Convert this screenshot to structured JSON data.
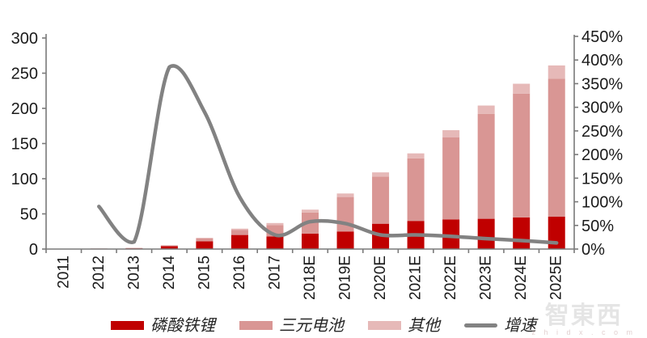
{
  "watermark": {
    "title": "智東西",
    "subtitle": "z h i d x . c o m"
  },
  "legend": {
    "items": [
      {
        "id": "lfp",
        "label": "磷酸铁锂",
        "color": "#C00000",
        "type": "bar"
      },
      {
        "id": "ncm",
        "label": "三元电池",
        "color": "#D99694",
        "type": "bar"
      },
      {
        "id": "other",
        "label": "其他",
        "color": "#E6B9B8",
        "type": "bar"
      },
      {
        "id": "growth",
        "label": "增速",
        "color": "#828282",
        "type": "line"
      }
    ]
  },
  "chart_data": {
    "type": "bar",
    "subtype": "stacked-column-with-growth-line",
    "title": "",
    "xlabel": "",
    "ylabel": "",
    "grid": false,
    "legend_position": "bottom",
    "categories": [
      "2011",
      "2012",
      "2013",
      "2014",
      "2015",
      "2016",
      "2017",
      "2018E",
      "2019E",
      "2020E",
      "2021E",
      "2022E",
      "2023E",
      "2024E",
      "2025E"
    ],
    "series": [
      {
        "id": "lfp",
        "name": "磷酸铁锂",
        "type": "bar",
        "axis": "left",
        "color": "#C00000",
        "values": [
          0.2,
          0.5,
          1,
          4,
          11,
          20,
          18,
          22,
          25,
          36,
          40,
          42,
          43,
          45,
          46
        ]
      },
      {
        "id": "ncm",
        "name": "三元电池",
        "type": "bar",
        "axis": "left",
        "color": "#D99694",
        "values": [
          0.1,
          0.3,
          0.5,
          1,
          4,
          7,
          16,
          30,
          49,
          67,
          89,
          117,
          149,
          176,
          196
        ]
      },
      {
        "id": "other",
        "name": "其他",
        "type": "bar",
        "axis": "left",
        "color": "#E6B9B8",
        "values": [
          0,
          0.2,
          0.3,
          0.5,
          1,
          2,
          3,
          4,
          5,
          6,
          7,
          10,
          12,
          14,
          19
        ]
      },
      {
        "id": "growth",
        "name": "增速",
        "type": "line",
        "axis": "right",
        "color": "#828282",
        "values": [
          null,
          90,
          15,
          385,
          290,
          110,
          30,
          58,
          54,
          30,
          30,
          27,
          22,
          18,
          13
        ]
      }
    ],
    "left_axis": {
      "min": 0,
      "max": 300,
      "step": 50,
      "tick_labels": [
        "0",
        "50",
        "100",
        "150",
        "200",
        "250",
        "300"
      ]
    },
    "right_axis": {
      "min": 0,
      "max": 450,
      "step": 50,
      "unit": "%",
      "tick_labels": [
        "0%",
        "50%",
        "100%",
        "150%",
        "200%",
        "250%",
        "300%",
        "350%",
        "400%",
        "450%"
      ]
    }
  }
}
